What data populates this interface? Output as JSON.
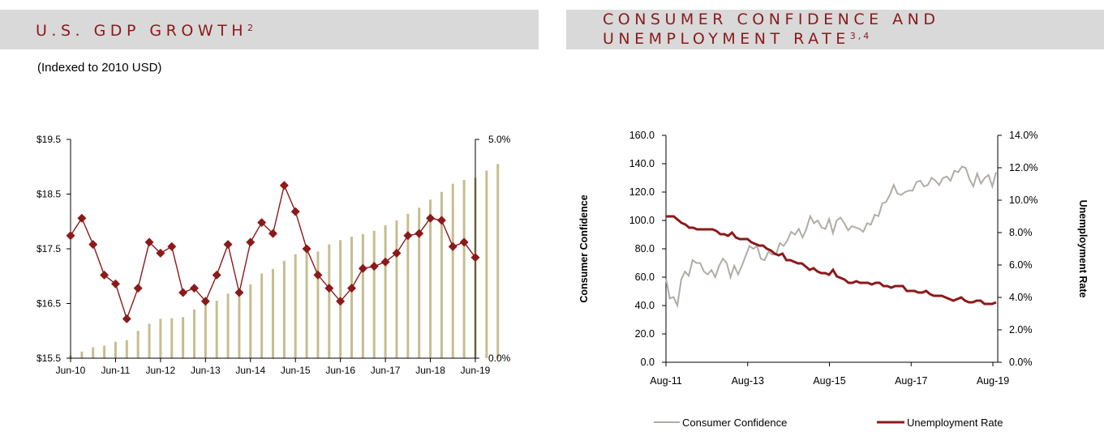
{
  "gdp_panel": {
    "title": "U.S. GDP GROWTH",
    "title_sup": "2",
    "subtitle": "(Indexed to 2010 USD)"
  },
  "conf_panel": {
    "title_line1": "CONSUMER CONFIDENCE AND",
    "title_line2": "UNEMPLOYMENT RATE",
    "title_sup": "3,4"
  },
  "colors": {
    "accent": "#8b1a1a",
    "bar": "#c6bd8f",
    "grey_line": "#b0aca6",
    "header_bg": "#d9d9d9"
  },
  "chart_data": [
    {
      "type": "bar+line",
      "title": "U.S. GDP GROWTH",
      "subtitle": "(Indexed to 2010 USD)",
      "x_tick_labels": [
        "Jun-10",
        "Jun-11",
        "Jun-12",
        "Jun-13",
        "Jun-14",
        "Jun-15",
        "Jun-16",
        "Jun-17",
        "Jun-18",
        "Jun-19"
      ],
      "y_left": {
        "ticks": [
          "$15.5",
          "$16.5",
          "$17.5",
          "$18.5",
          "$19.5"
        ],
        "ylim": [
          15.5,
          19.5
        ]
      },
      "y_right": {
        "ticks": [
          "0.0%",
          "5.0%"
        ],
        "ylim": [
          0,
          5
        ]
      },
      "grid": false,
      "series": [
        {
          "kind": "bar",
          "axis": "left",
          "values": [
            15.55,
            15.62,
            15.7,
            15.73,
            15.8,
            15.83,
            16.0,
            16.13,
            16.22,
            16.23,
            16.25,
            16.39,
            16.5,
            16.55,
            16.68,
            16.74,
            16.85,
            17.05,
            17.13,
            17.28,
            17.4,
            17.5,
            17.45,
            17.58,
            17.66,
            17.72,
            17.77,
            17.83,
            17.93,
            18.02,
            18.14,
            18.25,
            18.4,
            18.54,
            18.69,
            18.76,
            18.8,
            18.93,
            19.05
          ]
        },
        {
          "kind": "line",
          "axis": "right",
          "marker": "diamond",
          "values": [
            2.8,
            3.2,
            2.6,
            1.9,
            1.7,
            0.9,
            1.6,
            2.65,
            2.4,
            2.55,
            1.5,
            1.6,
            1.3,
            1.9,
            2.6,
            1.5,
            2.65,
            3.1,
            2.85,
            3.95,
            3.35,
            2.5,
            1.9,
            1.6,
            1.3,
            1.6,
            2.05,
            2.1,
            2.2,
            2.4,
            2.8,
            2.85,
            3.2,
            3.15,
            2.55,
            2.65,
            2.3
          ]
        }
      ]
    },
    {
      "type": "line",
      "x_tick_labels": [
        "Aug-11",
        "Aug-13",
        "Aug-15",
        "Aug-17",
        "Aug-19"
      ],
      "y_left": {
        "label": "Consumer Confidence",
        "ticks": [
          "0.0",
          "20.0",
          "40.0",
          "60.0",
          "80.0",
          "100.0",
          "120.0",
          "140.0",
          "160.0"
        ],
        "ylim": [
          0,
          160
        ]
      },
      "y_right": {
        "label": "Unemployment Rate",
        "ticks": [
          "0.0%",
          "2.0%",
          "4.0%",
          "6.0%",
          "8.0%",
          "10.0%",
          "12.0%",
          "14.0%"
        ],
        "ylim": [
          0,
          14
        ]
      },
      "grid": false,
      "legend": {
        "position": "bottom",
        "entries": [
          "Consumer Confidence",
          "Unemployment Rate"
        ]
      },
      "series": [
        {
          "name": "Consumer Confidence",
          "axis": "left",
          "values": [
            59,
            45,
            46,
            40,
            58,
            64,
            61,
            72,
            70,
            70,
            64,
            62,
            65,
            60,
            68,
            73,
            70,
            60,
            68,
            62,
            68,
            75,
            82,
            80,
            82,
            73,
            72,
            78,
            76,
            76,
            84,
            82,
            86,
            92,
            90,
            94,
            88,
            94,
            103,
            98,
            100,
            95,
            94,
            101,
            91,
            100,
            102,
            98,
            93,
            96,
            95,
            94,
            92,
            98,
            97,
            104,
            103,
            112,
            113,
            118,
            125,
            119,
            118,
            120,
            121,
            121,
            127,
            128,
            124,
            125,
            130,
            128,
            125,
            130,
            131,
            128,
            135,
            134,
            138,
            137,
            129,
            124,
            133,
            126,
            130,
            132,
            124,
            134
          ]
        },
        {
          "name": "Unemployment Rate",
          "axis": "right",
          "values": [
            9.0,
            9.0,
            9.0,
            8.8,
            8.6,
            8.5,
            8.3,
            8.3,
            8.2,
            8.2,
            8.2,
            8.2,
            8.2,
            8.1,
            7.9,
            7.9,
            7.8,
            8.0,
            7.7,
            7.6,
            7.6,
            7.6,
            7.4,
            7.3,
            7.2,
            7.2,
            7.0,
            6.9,
            6.7,
            6.6,
            6.7,
            6.3,
            6.3,
            6.2,
            6.1,
            6.1,
            5.9,
            5.7,
            5.8,
            5.6,
            5.5,
            5.5,
            5.4,
            5.7,
            5.3,
            5.2,
            5.1,
            4.9,
            4.9,
            5.0,
            4.9,
            4.9,
            4.9,
            4.8,
            4.9,
            4.9,
            4.7,
            4.7,
            4.6,
            4.7,
            4.7,
            4.7,
            4.4,
            4.4,
            4.4,
            4.3,
            4.3,
            4.4,
            4.2,
            4.1,
            4.1,
            4.1,
            4.0,
            3.9,
            3.8,
            3.9,
            4.0,
            3.8,
            3.7,
            3.7,
            3.8,
            3.8,
            3.6,
            3.6,
            3.6,
            3.7
          ]
        }
      ]
    }
  ]
}
